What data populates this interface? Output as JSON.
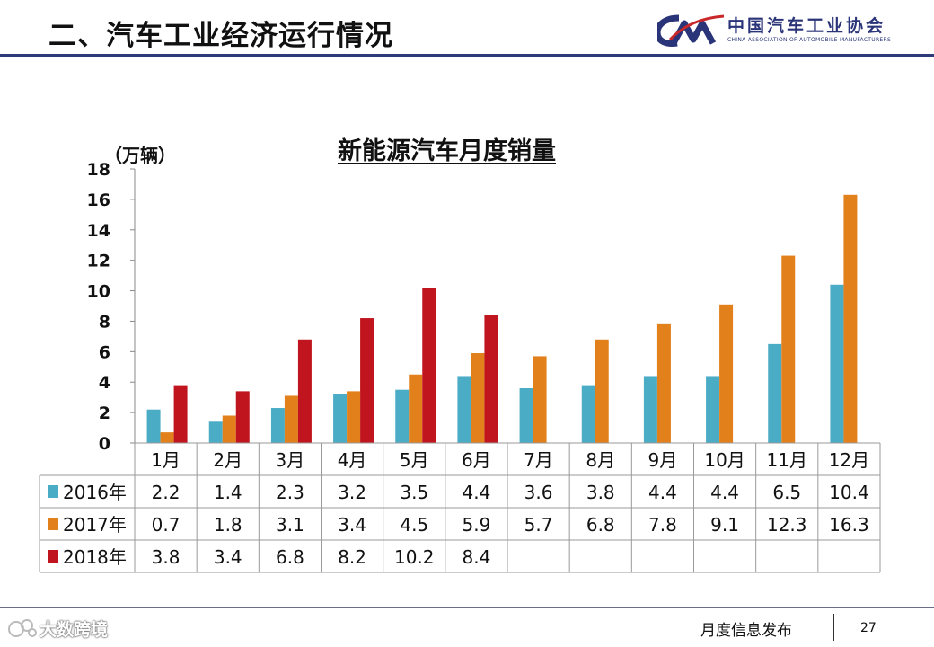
{
  "header": {
    "title": "二、汽车工业经济运行情况",
    "logo_name": "中国汽车工业协会",
    "logo_en": "CHINA ASSOCIATION OF AUTOMOBILE MANUFACTURERS"
  },
  "chart_data": {
    "type": "bar",
    "title": "新能源汽车月度销量",
    "ylabel": "（万辆）",
    "xlabel": "",
    "ylim": [
      0,
      18
    ],
    "yticks": [
      "0",
      "2",
      "4",
      "6",
      "8",
      "10",
      "12",
      "14",
      "16",
      "18"
    ],
    "categories": [
      "1月",
      "2月",
      "3月",
      "4月",
      "5月",
      "6月",
      "7月",
      "8月",
      "9月",
      "10月",
      "11月",
      "12月"
    ],
    "series": [
      {
        "name": "2016年",
        "color": "#4bacc6",
        "values": [
          2.2,
          1.4,
          2.3,
          3.2,
          3.5,
          4.4,
          3.6,
          3.8,
          4.4,
          4.4,
          6.5,
          10.4
        ],
        "labels": [
          "2.2",
          "1.4",
          "2.3",
          "3.2",
          "3.5",
          "4.4",
          "3.6",
          "3.8",
          "4.4",
          "4.4",
          "6.5",
          "10.4"
        ]
      },
      {
        "name": "2017年",
        "color": "#e2801c",
        "values": [
          0.7,
          1.8,
          3.1,
          3.4,
          4.5,
          5.9,
          5.7,
          6.8,
          7.8,
          9.1,
          12.3,
          16.3
        ],
        "labels": [
          "0.7",
          "1.8",
          "3.1",
          "3.4",
          "4.5",
          "5.9",
          "5.7",
          "6.8",
          "7.8",
          "9.1",
          "12.3",
          "16.3"
        ]
      },
      {
        "name": "2018年",
        "color": "#c0151e",
        "values": [
          3.8,
          3.4,
          6.8,
          8.2,
          10.2,
          8.4,
          null,
          null,
          null,
          null,
          null,
          null
        ],
        "labels": [
          "3.8",
          "3.4",
          "6.8",
          "8.2",
          "10.2",
          "8.4",
          "",
          "",
          "",
          "",
          "",
          ""
        ]
      }
    ],
    "legend": "data-table-left",
    "grid": false
  },
  "footer": {
    "label": "月度信息发布",
    "page_number": "27",
    "watermark": "大数跨境"
  }
}
